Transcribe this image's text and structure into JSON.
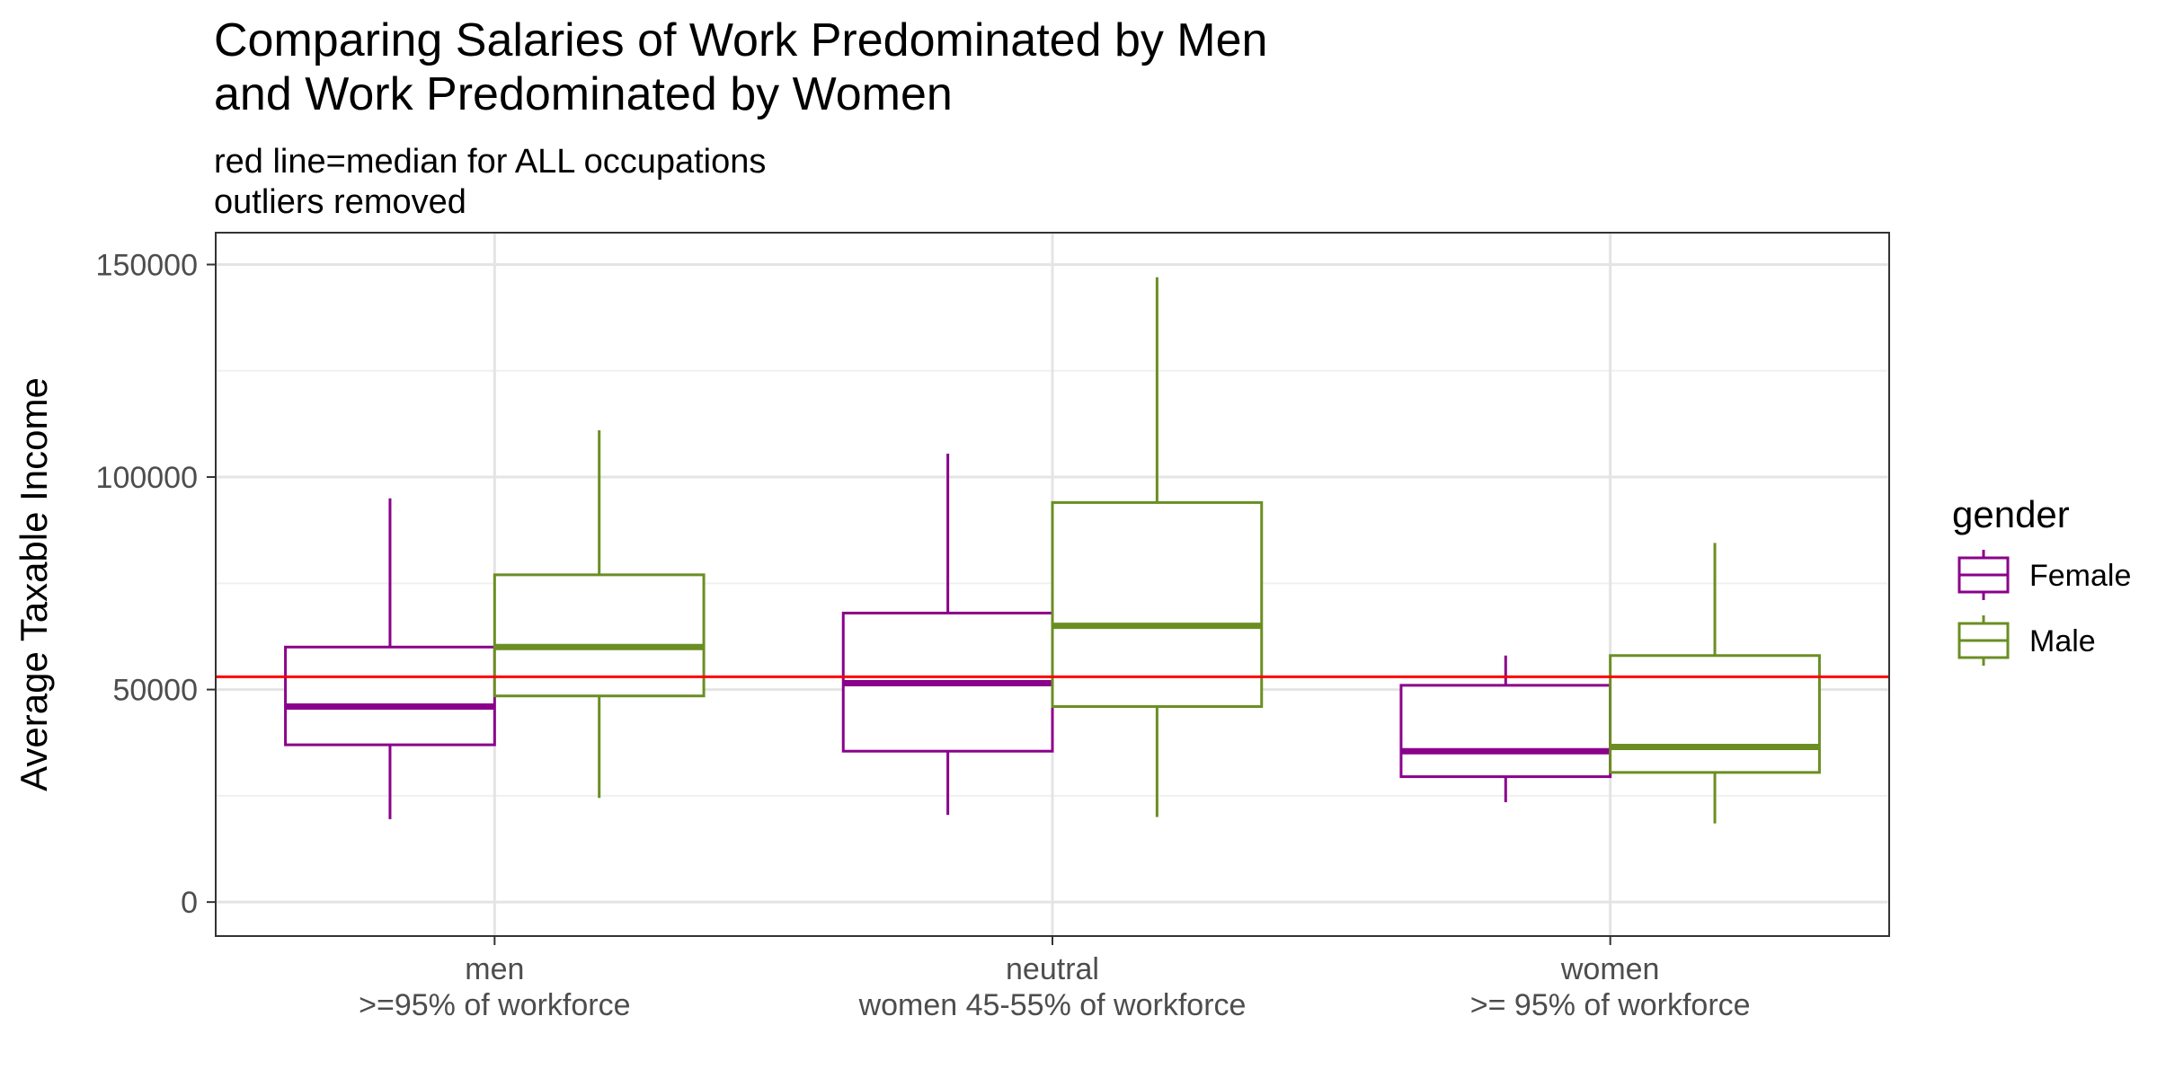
{
  "chart_data": {
    "type": "boxplot",
    "title_lines": [
      "Comparing Salaries of Work Predominated by Men",
      "and Work Predominated by Women"
    ],
    "subtitle_lines": [
      "red line=median for ALL occupations",
      "outliers removed"
    ],
    "xlabel": "",
    "ylabel": "Average Taxable Income",
    "ylim": [
      -8000,
      157500
    ],
    "y_ticks": [
      0,
      50000,
      100000,
      150000
    ],
    "y_tick_labels": [
      "0",
      "50000",
      "100000",
      "150000"
    ],
    "categories": [
      {
        "label_lines": [
          "men",
          ">=95% of workforce"
        ]
      },
      {
        "label_lines": [
          "neutral",
          "women 45-55% of workforce"
        ]
      },
      {
        "label_lines": [
          "women",
          ">= 95% of workforce"
        ]
      }
    ],
    "legend": {
      "title": "gender",
      "position": "right"
    },
    "series": [
      {
        "name": "Female",
        "color": "#8b008b",
        "boxes": [
          {
            "min": 19500,
            "q1": 37000,
            "median": 46000,
            "q3": 60000,
            "max": 95000
          },
          {
            "min": 20500,
            "q1": 35500,
            "median": 51500,
            "q3": 68000,
            "max": 105500
          },
          {
            "min": 23500,
            "q1": 29500,
            "median": 35500,
            "q3": 51000,
            "max": 58000
          }
        ]
      },
      {
        "name": "Male",
        "color": "#6b8e23",
        "boxes": [
          {
            "min": 24500,
            "q1": 48500,
            "median": 60000,
            "q3": 77000,
            "max": 111000
          },
          {
            "min": 20000,
            "q1": 46000,
            "median": 65000,
            "q3": 94000,
            "max": 147000
          },
          {
            "min": 18500,
            "q1": 30500,
            "median": 36500,
            "q3": 58000,
            "max": 84500
          }
        ]
      }
    ],
    "reference_line": {
      "value": 53000,
      "color": "#ff0000"
    },
    "grid": true
  }
}
